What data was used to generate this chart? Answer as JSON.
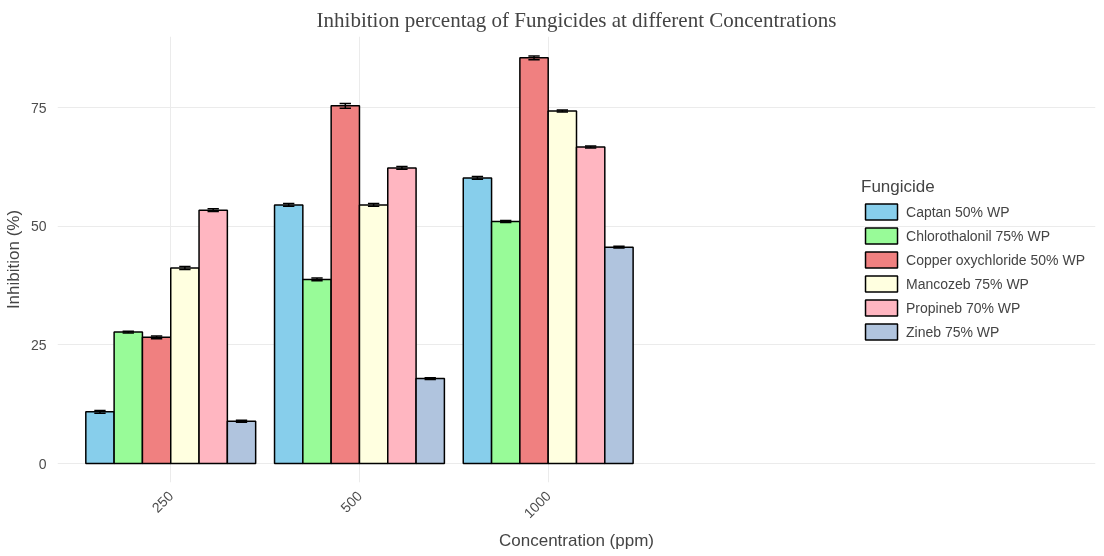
{
  "chart_data": {
    "type": "bar",
    "title": "Inhibition percentag of Fungicides at different Concentrations",
    "xlabel": "Concentration (ppm)",
    "ylabel": "Inhibition (%)",
    "legend_title": "Fungicide",
    "categories": [
      "250",
      "500",
      "1000"
    ],
    "series": [
      {
        "name": "Captan 50% WP",
        "color": "#87ceeb",
        "values": [
          10.9,
          54.5,
          60.2
        ],
        "errors": [
          0.3,
          0.3,
          0.3
        ]
      },
      {
        "name": "Chlorothalonil 75% WP",
        "color": "#98fb98",
        "values": [
          27.7,
          38.8,
          51.0
        ],
        "errors": [
          0.2,
          0.3,
          0.2
        ]
      },
      {
        "name": "Copper oxychloride 50% WP",
        "color": "#f08080",
        "values": [
          26.6,
          75.4,
          85.5
        ],
        "errors": [
          0.3,
          0.5,
          0.4
        ]
      },
      {
        "name": "Mancozeb 75% WP",
        "color": "#ffffe0",
        "values": [
          41.2,
          54.5,
          74.3
        ],
        "errors": [
          0.3,
          0.3,
          0.2
        ]
      },
      {
        "name": "Propineb 70% WP",
        "color": "#ffb6c1",
        "values": [
          53.4,
          62.3,
          66.7
        ],
        "errors": [
          0.3,
          0.3,
          0.2
        ]
      },
      {
        "name": "Zineb 75% WP",
        "color": "#b0c4de",
        "values": [
          8.9,
          17.9,
          45.6
        ],
        "errors": [
          0.2,
          0.2,
          0.2
        ]
      }
    ],
    "ylim": [
      -4,
      90
    ],
    "yticks": [
      0,
      25,
      50,
      75
    ],
    "grid": true,
    "legend": "right"
  }
}
